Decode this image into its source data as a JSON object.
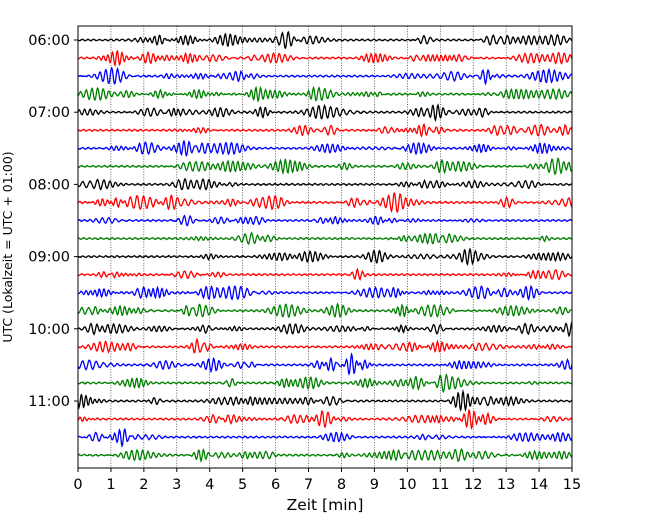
{
  "chart_data": {
    "type": "line",
    "title": "",
    "xlabel": "Zeit  [min]",
    "ylabel": "UTC (Lokalzeit = UTC + 01:00)",
    "xlim": [
      0,
      15
    ],
    "x_ticks": [
      0,
      1,
      2,
      3,
      4,
      5,
      6,
      7,
      8,
      9,
      10,
      11,
      12,
      13,
      14,
      15
    ],
    "x_grid": "dotted vertical lines at each minute",
    "y_tick_labels": [
      "06:00",
      "07:00",
      "08:00",
      "09:00",
      "10:00",
      "11:00"
    ],
    "traces_per_hour": 4,
    "trace_start": "06:00",
    "trace_interval_min": 15,
    "trace_count": 24,
    "trace_colors": [
      "#000000",
      "#ff0000",
      "#0000ff",
      "#008000"
    ],
    "legend": "none"
  }
}
